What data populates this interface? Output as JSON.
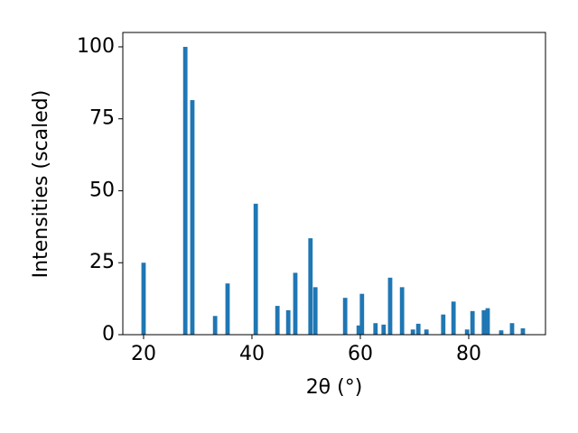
{
  "chart_data": {
    "type": "bar",
    "x": [
      20,
      27.7,
      29.0,
      33.2,
      35.5,
      40.7,
      44.7,
      46.7,
      48.0,
      50.8,
      51.7,
      57.2,
      59.7,
      60.3,
      62.8,
      64.3,
      65.5,
      67.7,
      69.7,
      70.7,
      72.2,
      75.3,
      77.2,
      79.7,
      80.7,
      82.8,
      83.5,
      86.0,
      88.0,
      90.0
    ],
    "values": [
      25,
      100,
      81.5,
      6.5,
      17.8,
      45.5,
      10,
      8.5,
      21.5,
      33.5,
      16.5,
      12.8,
      3.2,
      14.2,
      4,
      3.5,
      19.8,
      16.5,
      1.8,
      3.8,
      1.8,
      7,
      11.5,
      1.8,
      8.2,
      8.5,
      9.2,
      1.5,
      4,
      2.2
    ],
    "color": "#1f77b4",
    "x_label": "2θ (°)",
    "y_label": "Intensities (scaled)",
    "xlim": [
      16.17,
      94.17
    ],
    "xticks": [
      20,
      40,
      60,
      80
    ],
    "ylim": [
      0,
      105
    ],
    "yticks": [
      0,
      25,
      50,
      75,
      100
    ],
    "grid": false
  }
}
